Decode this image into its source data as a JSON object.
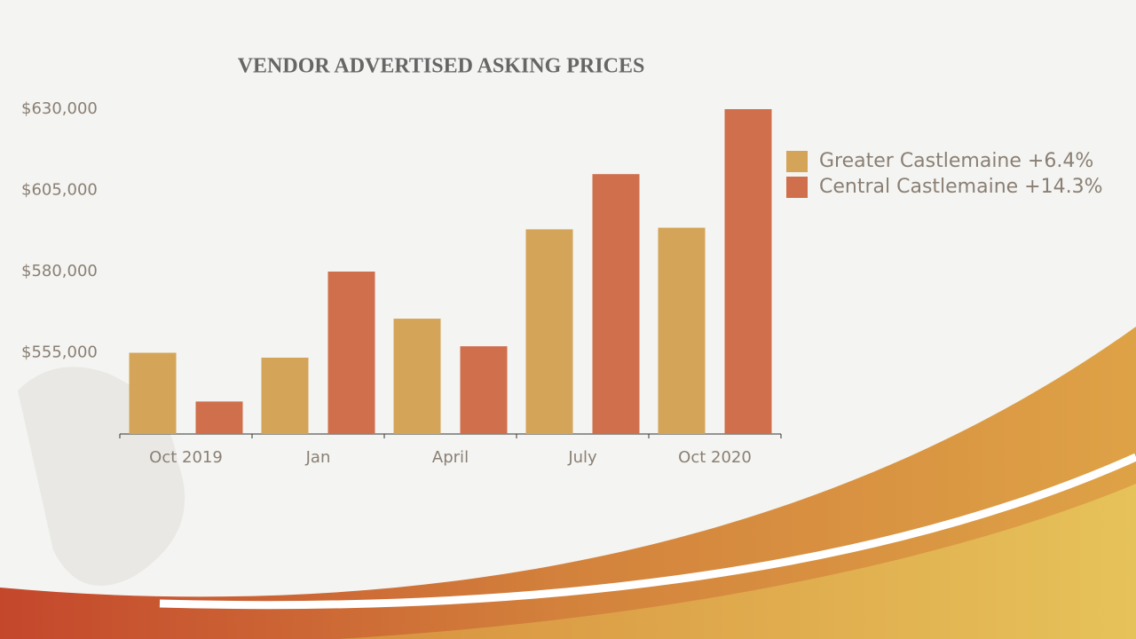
{
  "chart_data": {
    "type": "bar",
    "title": "VENDOR ADVERTISED ASKING PRICES",
    "categories": [
      "Oct 2019",
      "Jan",
      "April",
      "July",
      "Oct 2020"
    ],
    "series": [
      {
        "name": "Greater Castlemaine +6.4%",
        "color": "#d4a458",
        "values": [
          555000,
          553500,
          565500,
          593000,
          593500
        ]
      },
      {
        "name": "Central Castlemaine +14.3%",
        "color": "#cf6f4b",
        "values": [
          540000,
          580000,
          557000,
          610000,
          630000
        ]
      }
    ],
    "ylim": [
      530000,
      630000
    ],
    "yticks": [
      {
        "value": 555000,
        "label": "$555,000"
      },
      {
        "value": 580000,
        "label": "$580,000"
      },
      {
        "value": 605000,
        "label": "$605,000"
      },
      {
        "value": 630000,
        "label": "$630,000"
      }
    ],
    "grid": false
  }
}
